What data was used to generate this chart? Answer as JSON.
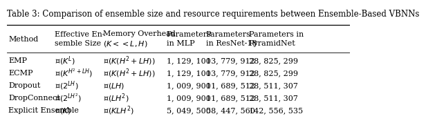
{
  "title": "Table 3: Comparison of ensemble size and resource requirements between Ensemble-Based VBNNs",
  "col_headers": [
    "Method",
    "Effective En-\nsemble Size",
    "Memory Overhead\n$(K << L, H)$",
    "Parameters\nin MLP",
    "Parameters\nin ResNet-18",
    "Parameters in\nPyramidNet"
  ],
  "rows": [
    [
      "EMP",
      "$\\mathcal{O}(K^L)$",
      "$\\mathcal{O}(K(H^2 + LH))$",
      "1, 129, 100",
      "13, 779, 912",
      "28, 825, 299"
    ],
    [
      "ECMP",
      "$\\mathcal{O}(K^{H^2+LH})$",
      "$\\mathcal{O}(K(H^2 + LH))$",
      "1, 129, 100",
      "13, 779, 912",
      "28, 825, 299"
    ],
    [
      "Dropout",
      "$\\mathcal{O}(2^{LH})$",
      "$\\mathcal{O}(LH)$",
      "1, 009, 900",
      "11, 689, 512",
      "28, 511, 307"
    ],
    [
      "DropConnect",
      "$\\mathcal{O}(2^{LH^2})$",
      "$\\mathcal{O}(LH^2)$",
      "1, 009, 900",
      "11, 689, 512",
      "28, 511, 307"
    ],
    [
      "Explicit Ensemble",
      "$\\mathcal{O}(K)$",
      "$\\mathcal{O}(KLH^2)$",
      "5, 049, 500",
      "58, 447, 560",
      "142, 556, 535"
    ]
  ],
  "col_starts": [
    0.0,
    0.135,
    0.275,
    0.46,
    0.575,
    0.7
  ],
  "background_color": "#ffffff",
  "text_color": "#000000",
  "fontsize": 8.0,
  "header_fontsize": 8.0,
  "title_fontsize": 8.5
}
